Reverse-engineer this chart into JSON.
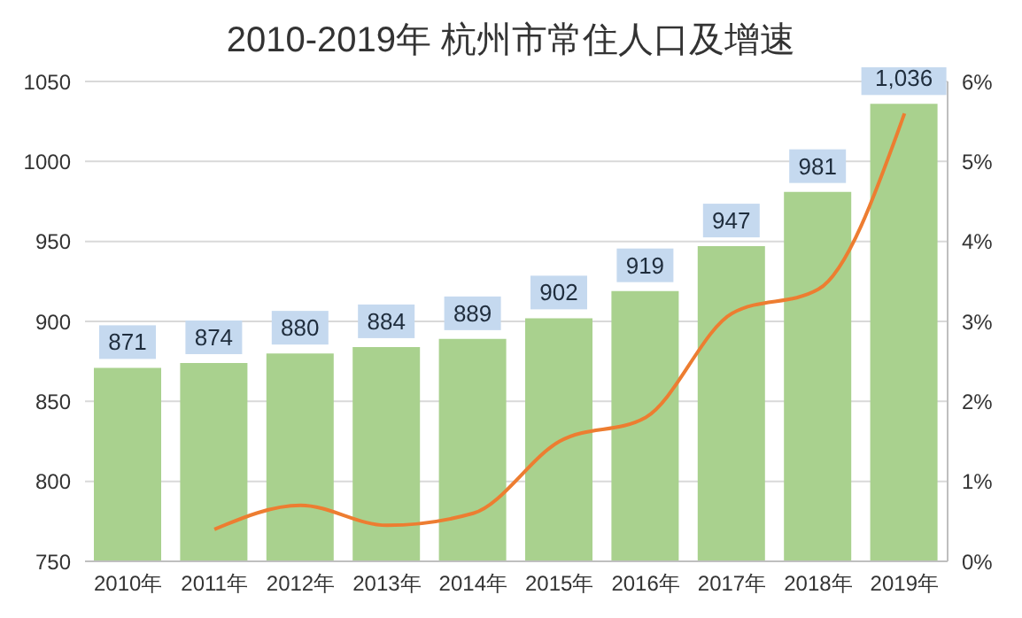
{
  "chart_data": {
    "type": "bar",
    "title": "2010-2019年 杭州市常住人口及增速",
    "categories": [
      "2010年",
      "2011年",
      "2012年",
      "2013年",
      "2014年",
      "2015年",
      "2016年",
      "2017年",
      "2018年",
      "2019年"
    ],
    "series": [
      {
        "color": "#a9d18e",
        "values": [
          871,
          874,
          880,
          884,
          889,
          902,
          919,
          947,
          981,
          1036
        ],
        "value_labels": [
          "871",
          "874",
          "880",
          "884",
          "889",
          "902",
          "919",
          "947",
          "981",
          "1,036"
        ]
      },
      {
        "type": "line",
        "axis": "y2",
        "color": "#ed7d31",
        "values": [
          null,
          0.4,
          0.7,
          0.45,
          0.6,
          1.5,
          1.8,
          3.1,
          3.4,
          5.6
        ]
      }
    ],
    "ylim": [
      750,
      1050
    ],
    "yticks": [
      750,
      800,
      850,
      900,
      950,
      1000,
      1050
    ],
    "y2lim": [
      0,
      6
    ],
    "y2ticks": [
      {
        "value": 0,
        "label": "0%"
      },
      {
        "value": 1,
        "label": "1%"
      },
      {
        "value": 2,
        "label": "2%"
      },
      {
        "value": 3,
        "label": "3%"
      },
      {
        "value": 4,
        "label": "4%"
      },
      {
        "value": 5,
        "label": "5%"
      },
      {
        "value": 6,
        "label": "6%"
      }
    ],
    "grid": "y",
    "legend": false,
    "marker": "none",
    "line_style": "solid"
  }
}
